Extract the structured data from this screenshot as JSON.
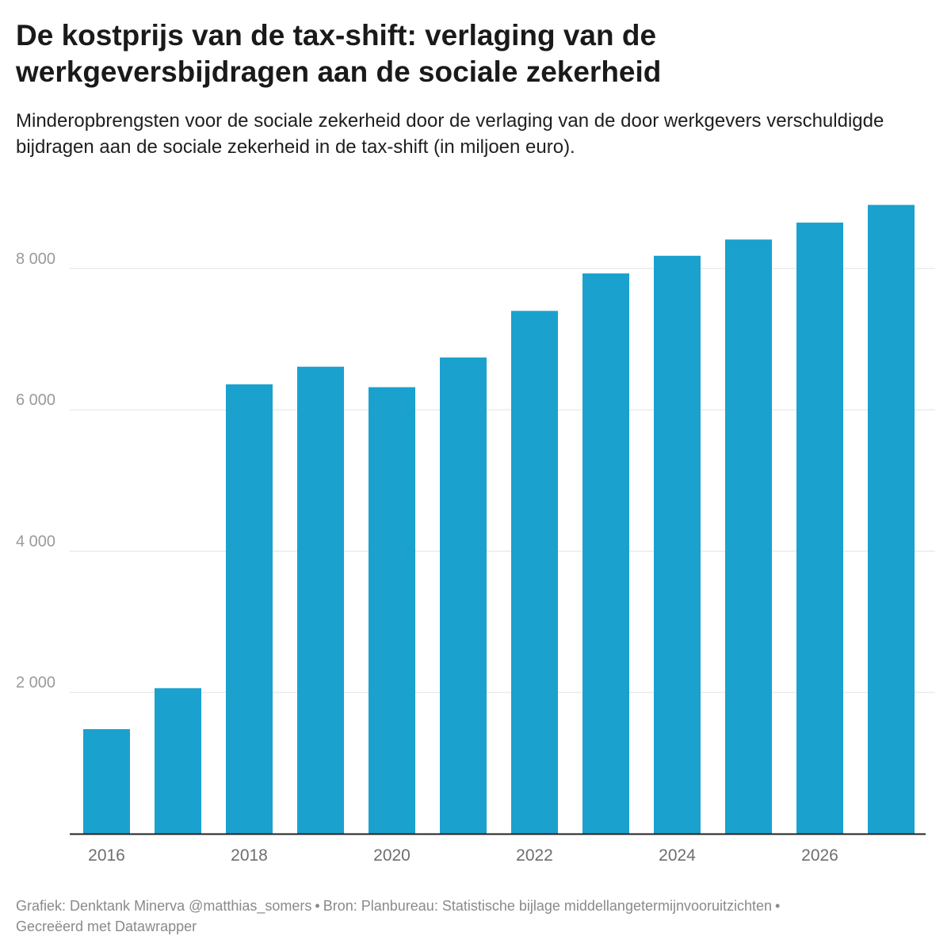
{
  "header": {
    "title": "De kostprijs van de tax-shift: verlaging van de werkgeversbijdragen aan de sociale zekerheid",
    "subtitle": "Minderopbrengsten voor de sociale zekerheid door de verlaging van de door werkgevers verschuldigde bijdragen aan de sociale zekerheid in de tax-shift (in miljoen euro)."
  },
  "footer": {
    "credit": "Grafiek: Denktank Minerva @matthias_somers",
    "separator": "•",
    "source": "Bron: Planbureau: Statistische bijlage middellangetermijnvooruitzichten",
    "made_with": "Gecreëerd met Datawrapper"
  },
  "colors": {
    "bar": "#1aa1ce",
    "grid": "#e2e2e2",
    "axis": "#222222",
    "tick_label": "#9a9a9a"
  },
  "chart_data": {
    "type": "bar",
    "title": "De kostprijs van de tax-shift: verlaging van de werkgeversbijdragen aan de sociale zekerheid",
    "xlabel": "",
    "ylabel": "",
    "categories": [
      "2016",
      "2017",
      "2018",
      "2019",
      "2020",
      "2021",
      "2022",
      "2023",
      "2024",
      "2025",
      "2026",
      "2027"
    ],
    "values": [
      1480,
      2060,
      6360,
      6610,
      6320,
      6740,
      7400,
      7930,
      8180,
      8410,
      8650,
      8900
    ],
    "ylim": [
      0,
      9000
    ],
    "yticks": [
      2000,
      4000,
      6000,
      8000
    ],
    "ytick_labels": [
      "2 000",
      "4 000",
      "6 000",
      "8 000"
    ],
    "xtick_labels": [
      "2016",
      "2018",
      "2020",
      "2022",
      "2024",
      "2026"
    ],
    "grid": true,
    "legend": "none"
  }
}
